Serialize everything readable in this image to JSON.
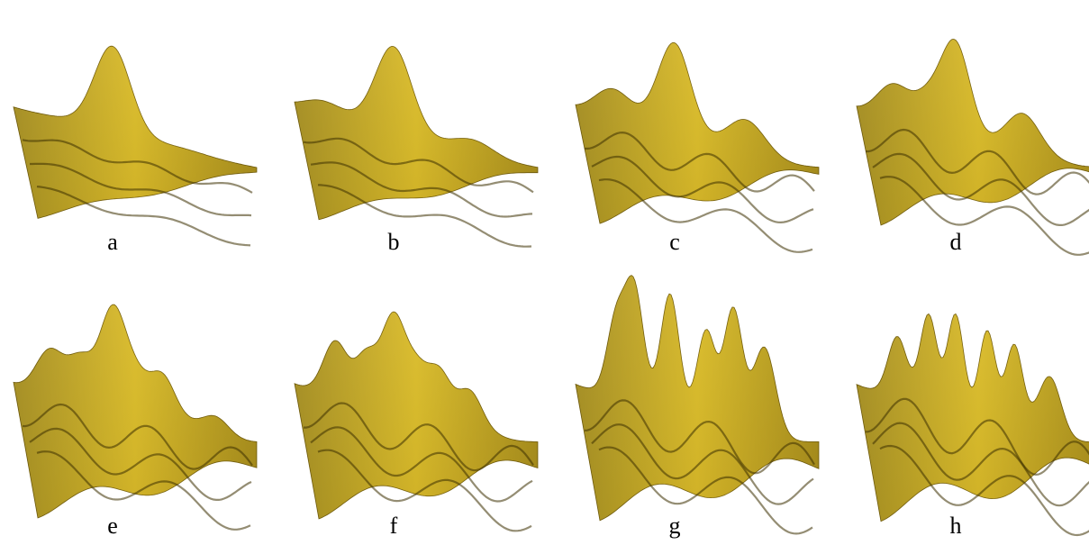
{
  "panels": [
    {
      "label": "a"
    },
    {
      "label": "b"
    },
    {
      "label": "c"
    },
    {
      "label": "d"
    },
    {
      "label": "e"
    },
    {
      "label": "f"
    },
    {
      "label": "g"
    },
    {
      "label": "h"
    }
  ]
}
